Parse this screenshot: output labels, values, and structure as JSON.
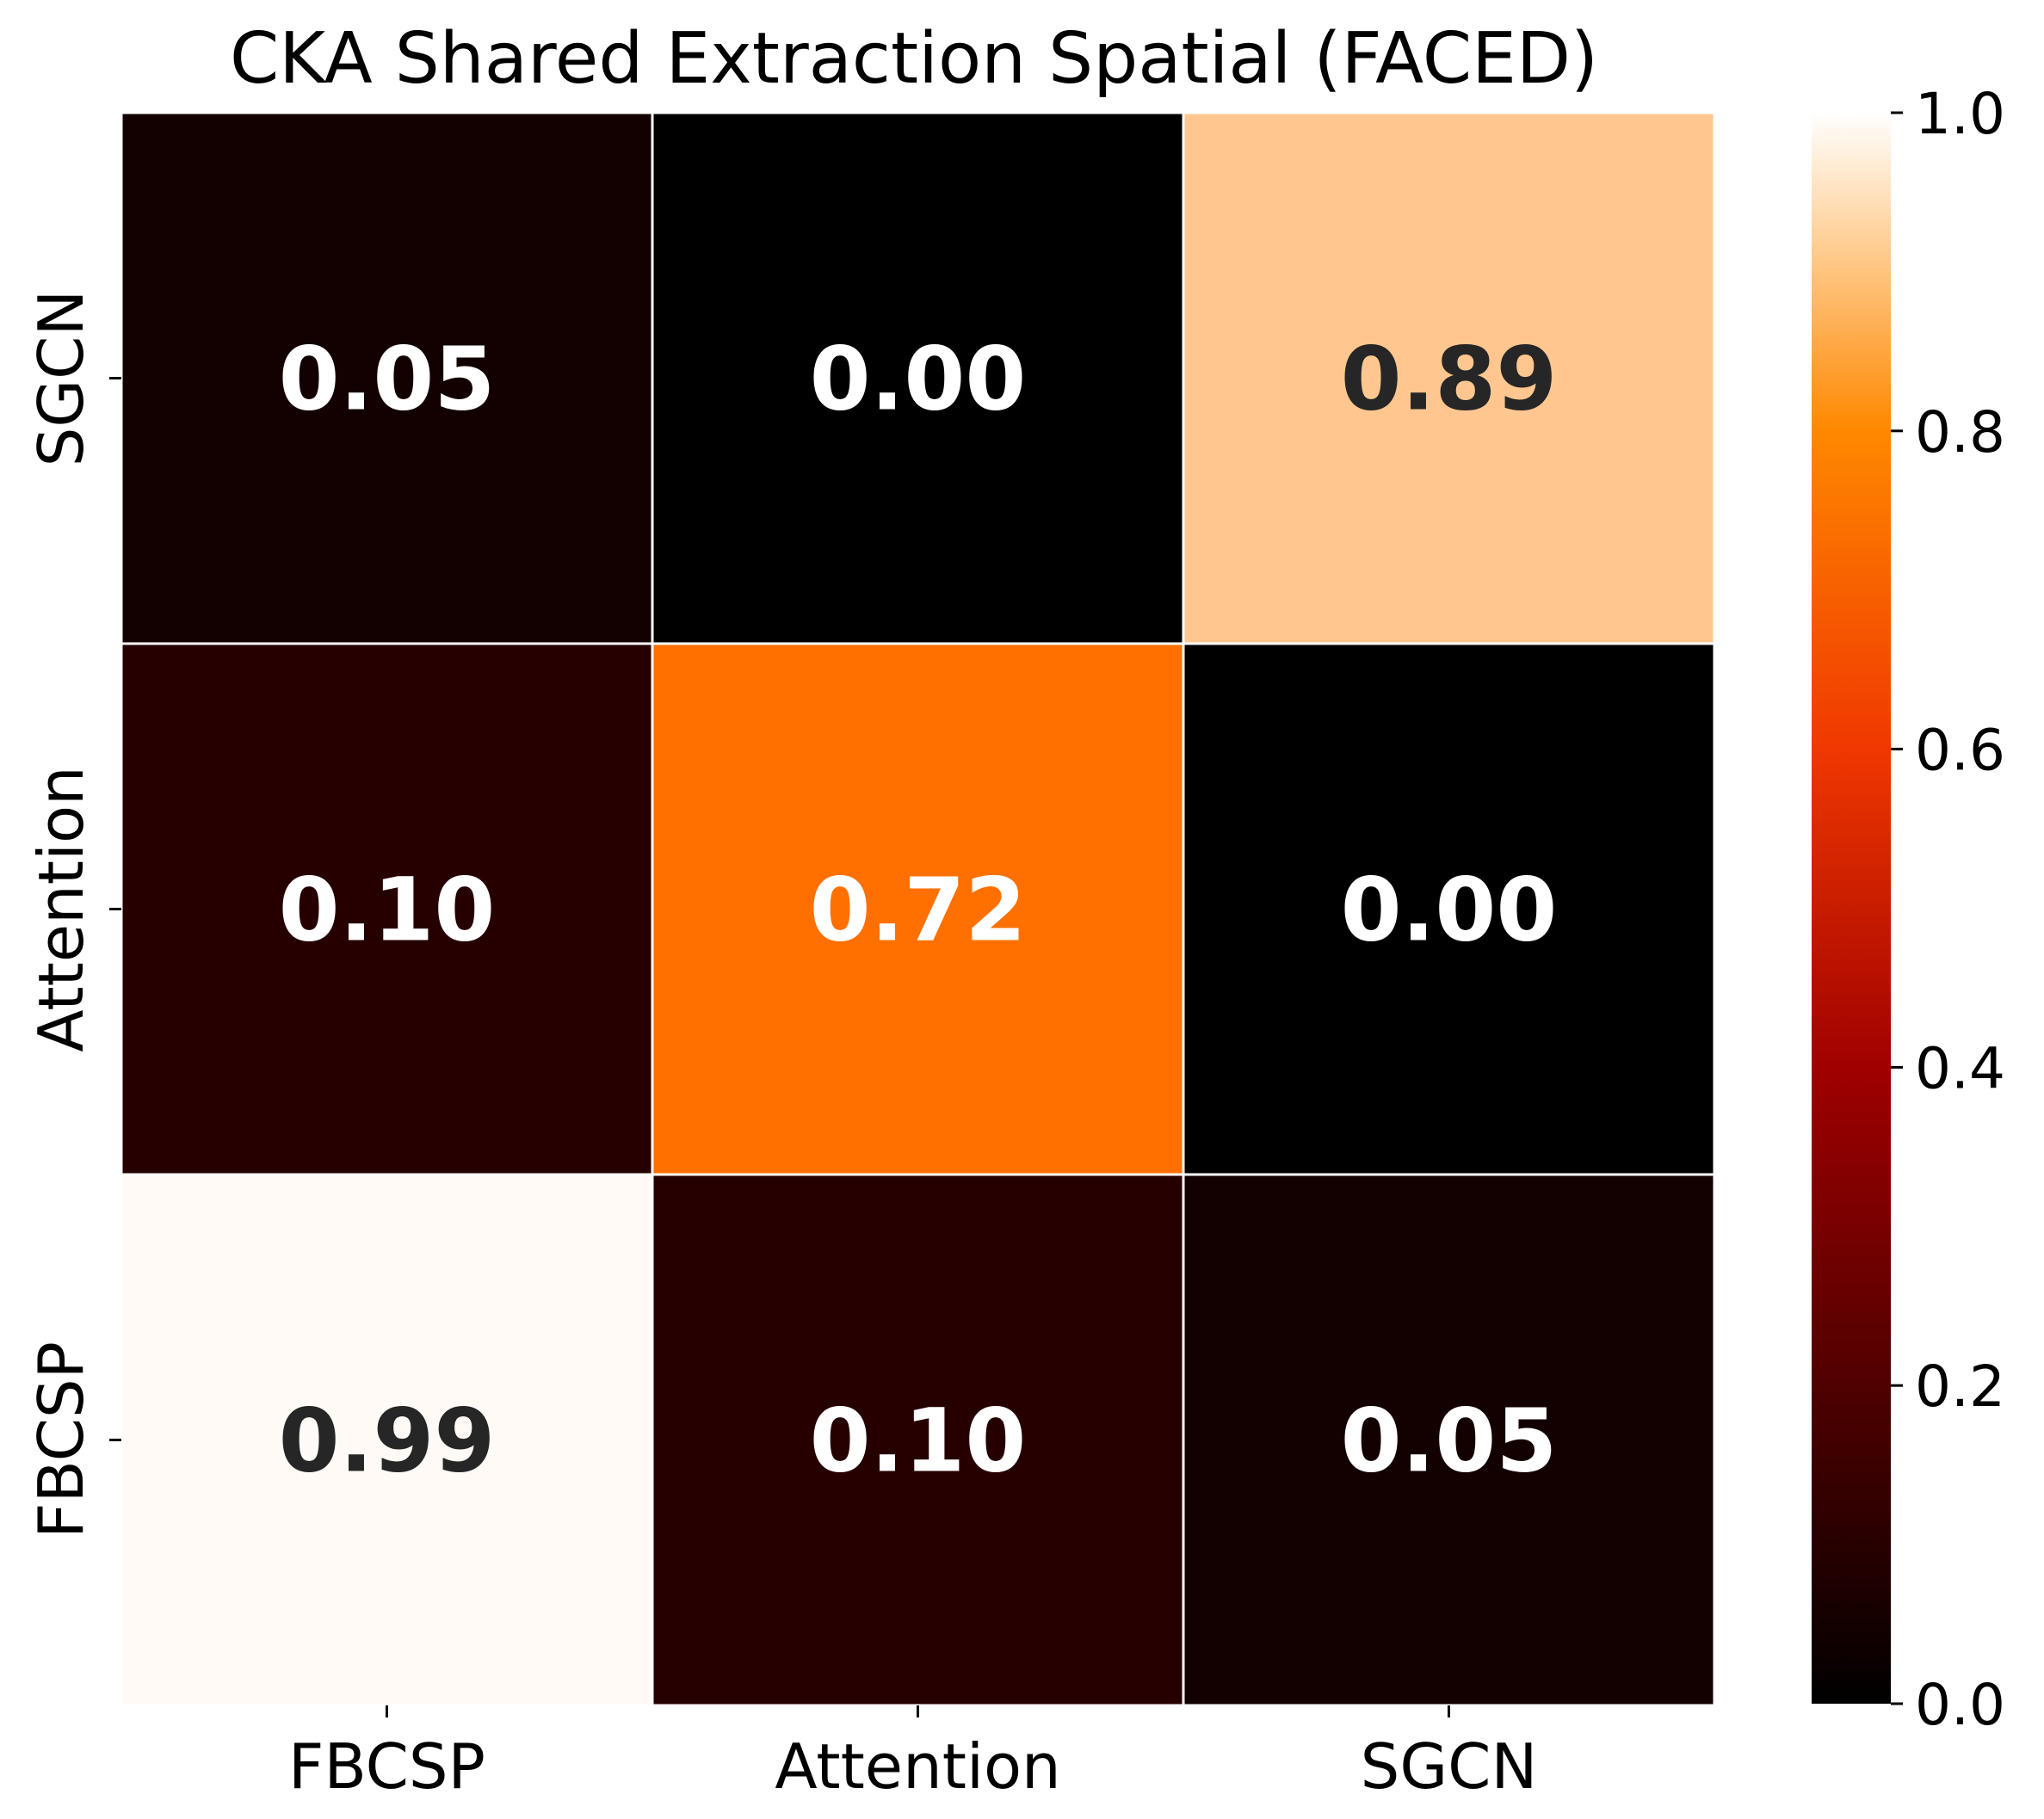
{
  "chart_data": {
    "type": "heatmap",
    "title": "CKA Shared Extraction Spatial (FACED)",
    "x_categories": [
      "FBCSP",
      "Attention",
      "SGCN"
    ],
    "y_categories": [
      "SGCN",
      "Attention",
      "FBCSP"
    ],
    "values": [
      [
        0.05,
        0.0,
        0.89
      ],
      [
        0.1,
        0.72,
        0.0
      ],
      [
        0.99,
        0.1,
        0.05
      ]
    ],
    "value_labels": [
      [
        "0.05",
        "0.00",
        "0.89"
      ],
      [
        "0.10",
        "0.72",
        "0.00"
      ],
      [
        "0.99",
        "0.10",
        "0.05"
      ]
    ],
    "colormap": "gist_heat",
    "vmin": 0.0,
    "vmax": 1.0,
    "colorbar": {
      "ticks": [
        0.0,
        0.2,
        0.4,
        0.6,
        0.8,
        1.0
      ],
      "tick_labels": [
        "0.0",
        "0.2",
        "0.4",
        "0.6",
        "0.8",
        "1.0"
      ]
    },
    "cell_border_color": "#ffffff",
    "label_colors": {
      "dark": "#262626",
      "light": "#ffffff"
    }
  }
}
